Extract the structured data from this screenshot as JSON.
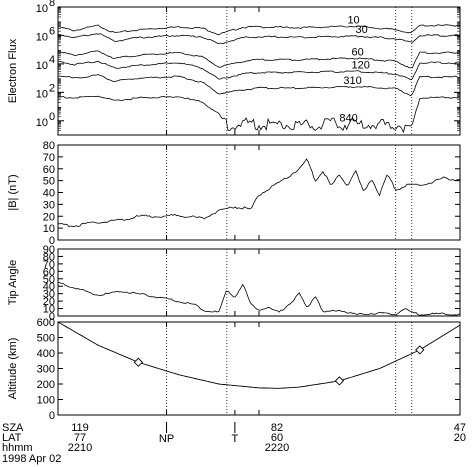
{
  "chart_data": [
    {
      "type": "line",
      "ylabel": "Electron Flux",
      "yscale": "log",
      "ylim": [
        0.1,
        100000000
      ],
      "yticks": [
        {
          "value": 1,
          "base": "10",
          "exp": "0"
        },
        {
          "value": 100,
          "base": "10",
          "exp": "2"
        },
        {
          "value": 10000,
          "base": "10",
          "exp": "4"
        },
        {
          "value": 1000000,
          "base": "10",
          "exp": "6"
        },
        {
          "value": 100000000,
          "base": "10",
          "exp": "8"
        }
      ],
      "series": [
        {
          "name": "10",
          "x": [
            0,
            0.04,
            0.1,
            0.14,
            0.2,
            0.3,
            0.36,
            0.4,
            0.46,
            0.5,
            0.6,
            0.74,
            0.84,
            0.88,
            0.9,
            1.0
          ],
          "y": [
            4000000,
            2200000,
            5000000,
            1500000,
            2500000,
            4000000,
            3200000,
            1200000,
            3800000,
            4000000,
            3500000,
            4500000,
            2500000,
            1500000,
            5000000,
            5000000
          ]
        },
        {
          "name": "30",
          "x": [
            0,
            0.04,
            0.1,
            0.14,
            0.2,
            0.3,
            0.36,
            0.4,
            0.46,
            0.5,
            0.6,
            0.74,
            0.84,
            0.88,
            0.9,
            1.0
          ],
          "y": [
            1300000,
            700000,
            1400000,
            400000,
            700000,
            1000000,
            800000,
            250000,
            700000,
            800000,
            750000,
            900000,
            600000,
            300000,
            1000000,
            1000000
          ]
        },
        {
          "name": "60",
          "x": [
            0,
            0.04,
            0.1,
            0.14,
            0.2,
            0.3,
            0.36,
            0.4,
            0.46,
            0.5,
            0.6,
            0.74,
            0.84,
            0.88,
            0.9,
            1.0
          ],
          "y": [
            70000,
            40000,
            80000,
            25000,
            40000,
            60000,
            30000,
            6000,
            15000,
            20000,
            20000,
            25000,
            15000,
            5000,
            60000,
            60000
          ]
        },
        {
          "name": "120",
          "x": [
            0,
            0.04,
            0.1,
            0.14,
            0.2,
            0.3,
            0.36,
            0.4,
            0.46,
            0.5,
            0.6,
            0.74,
            0.84,
            0.88,
            0.9,
            1.0
          ],
          "y": [
            15000,
            9000,
            16000,
            5000,
            8000,
            12000,
            5000,
            800,
            2000,
            2500,
            2500,
            3000,
            2000,
            700,
            12000,
            12000
          ]
        },
        {
          "name": "310",
          "x": [
            0,
            0.04,
            0.1,
            0.14,
            0.2,
            0.3,
            0.36,
            0.4,
            0.46,
            0.5,
            0.6,
            0.74,
            0.84,
            0.88,
            0.9,
            1.0
          ],
          "y": [
            1500,
            1000,
            1600,
            600,
            1000,
            1300,
            500,
            80,
            150,
            200,
            200,
            250,
            180,
            60,
            1200,
            1200
          ]
        },
        {
          "name": "840",
          "x": [
            0,
            0.04,
            0.1,
            0.14,
            0.2,
            0.3,
            0.36,
            0.4,
            0.42,
            0.46,
            0.5,
            0.6,
            0.74,
            0.84,
            0.88,
            0.9,
            1.0
          ],
          "y": [
            50,
            40,
            55,
            25,
            40,
            50,
            20,
            3,
            0.5,
            0.6,
            0.6,
            0.5,
            0.6,
            0.5,
            0.4,
            40,
            45
          ]
        }
      ]
    },
    {
      "type": "line",
      "ylabel": "|B| (nT)",
      "ylim": [
        0,
        80
      ],
      "yticks": [
        "0",
        "10",
        "20",
        "30",
        "40",
        "50",
        "60",
        "70",
        "80"
      ],
      "series": [
        {
          "x": [
            0,
            0.04,
            0.1,
            0.16,
            0.2,
            0.26,
            0.3,
            0.36,
            0.4,
            0.44,
            0.48,
            0.5,
            0.55,
            0.58,
            0.6,
            0.62,
            0.64,
            0.66,
            0.68,
            0.7,
            0.72,
            0.74,
            0.76,
            0.78,
            0.8,
            0.82,
            0.84,
            0.86,
            0.88,
            0.9,
            0.92,
            0.94,
            0.96,
            0.98,
            1.0
          ],
          "y": [
            13,
            12,
            15,
            17,
            20,
            20,
            21,
            18,
            25,
            28,
            26,
            38,
            48,
            55,
            60,
            68,
            50,
            58,
            45,
            55,
            46,
            58,
            40,
            52,
            38,
            55,
            42,
            45,
            47,
            46,
            48,
            50,
            52,
            51,
            52
          ]
        }
      ]
    },
    {
      "type": "line",
      "ylabel": "Tip Angle",
      "ylim": [
        0,
        90
      ],
      "yticks": [
        "0",
        "10",
        "20",
        "30",
        "40",
        "50",
        "60",
        "70",
        "80",
        "90"
      ],
      "series": [
        {
          "x": [
            0,
            0.04,
            0.1,
            0.16,
            0.22,
            0.28,
            0.34,
            0.36,
            0.4,
            0.42,
            0.44,
            0.46,
            0.48,
            0.5,
            0.52,
            0.55,
            0.58,
            0.6,
            0.62,
            0.64,
            0.66,
            0.7,
            0.74,
            0.8,
            0.84,
            0.86,
            0.88,
            0.9,
            0.95,
            1.0
          ],
          "y": [
            45,
            38,
            28,
            33,
            28,
            22,
            15,
            8,
            5,
            35,
            25,
            43,
            15,
            8,
            12,
            5,
            18,
            30,
            10,
            28,
            5,
            8,
            2,
            4,
            2,
            10,
            5,
            2,
            3,
            2
          ]
        }
      ]
    },
    {
      "type": "line",
      "ylabel": "Altitude (km)",
      "ylim": [
        0,
        600
      ],
      "yticks": [
        "0",
        "100",
        "200",
        "300",
        "400",
        "500",
        "600"
      ],
      "series": [
        {
          "x": [
            0,
            0.1,
            0.2,
            0.3,
            0.4,
            0.5,
            0.55,
            0.6,
            0.7,
            0.8,
            0.9,
            1.0
          ],
          "y": [
            600,
            450,
            340,
            260,
            200,
            175,
            172,
            180,
            220,
            300,
            420,
            580
          ],
          "markers_at": [
            {
              "x": 0.2,
              "y": 340
            },
            {
              "x": 0.7,
              "y": 220
            },
            {
              "x": 0.9,
              "y": 420
            }
          ]
        }
      ]
    }
  ],
  "panel_labels": {
    "flux_curves": [
      "10",
      "30",
      "60",
      "120",
      "310",
      "840"
    ]
  },
  "dotted_markers_x": [
    0.27,
    0.42,
    0.84,
    0.88
  ],
  "orbit_info": {
    "rows": [
      "SZA",
      "LAT",
      "hhmm"
    ],
    "date": "1998 Apr 02",
    "ticks": [
      {
        "x": 0.0,
        "sza": "119",
        "lat": "77",
        "hhmm": "2210",
        "event": ""
      },
      {
        "x": 0.27,
        "sza": "",
        "lat": "",
        "hhmm": "",
        "event": "NP"
      },
      {
        "x": 0.44,
        "sza": "",
        "lat": "",
        "hhmm": "",
        "event": "T"
      },
      {
        "x": 0.5,
        "sza": "82",
        "lat": "60",
        "hhmm": "2220",
        "event": ""
      },
      {
        "x": 1.0,
        "sza": "47",
        "lat": "20",
        "hhmm": "",
        "event": ""
      }
    ]
  }
}
